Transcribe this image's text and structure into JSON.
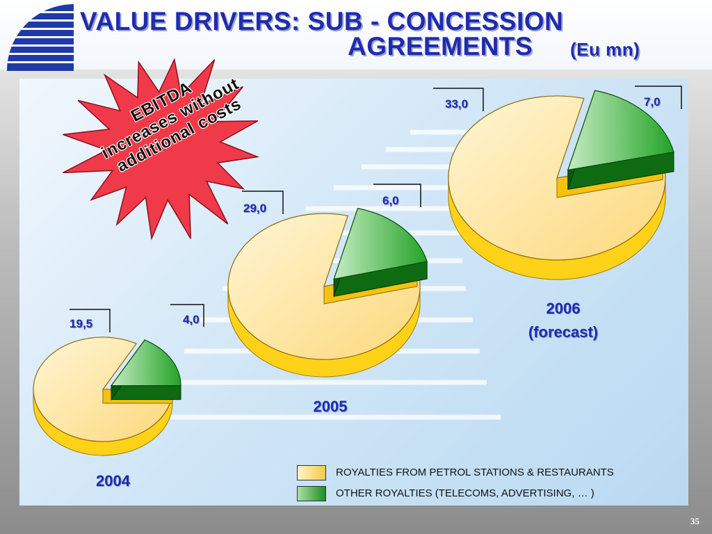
{
  "slide": {
    "title_line1": "VALUE DRIVERS: SUB - CONCESSION",
    "title_line2": "AGREEMENTS",
    "title_unit": "(Eu mn)",
    "callout_lines": [
      "EBITDA",
      "increases without",
      "additional costs"
    ],
    "page_number": "35"
  },
  "colors": {
    "title": "#1f2bb0",
    "royalties_fill": "#fde7a6",
    "royalties_side": "#ffd21a",
    "other_fill": "#7fce7a",
    "other_side": "#0e6b12",
    "starburst": "#f03a4a"
  },
  "chart_data": {
    "type": "pie",
    "title": "VALUE DRIVERS: SUB - CONCESSION AGREEMENTS (Eu mn)",
    "series_names": [
      "ROYALTIES FROM PETROL STATIONS & RESTAURANTS",
      "OTHER ROYALTIES (TELECOMS, ADVERTISING, … )"
    ],
    "pies": [
      {
        "year": "2004",
        "year_line2": "",
        "labels": [
          "19,5",
          "4,0"
        ],
        "values": [
          19.5,
          4.0
        ]
      },
      {
        "year": "2005",
        "year_line2": "",
        "labels": [
          "29,0",
          "6,0"
        ],
        "values": [
          29.0,
          6.0
        ]
      },
      {
        "year": "2006",
        "year_line2": "(forecast)",
        "labels": [
          "33,0",
          "7,0"
        ],
        "values": [
          33.0,
          7.0
        ]
      }
    ],
    "legend": [
      {
        "label": "ROYALTIES FROM PETROL STATIONS & RESTAURANTS",
        "color": "#fde7a6"
      },
      {
        "label": "OTHER ROYALTIES (TELECOMS, ADVERTISING, … )",
        "color": "#5cbf5a"
      }
    ]
  }
}
